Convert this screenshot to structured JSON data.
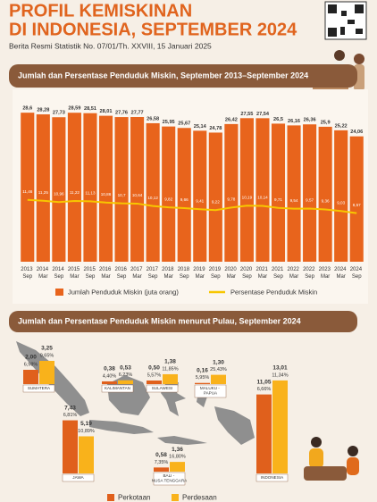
{
  "header": {
    "title_lines": [
      "PROFIL KEMISKINAN",
      "DI INDONESIA, SEPTEMBER 2024"
    ],
    "subtitle": "Berita Resmi Statistik No. 07/01/Th. XXVIII, 15 Januari 2025"
  },
  "chart_data": [
    {
      "type": "bar",
      "title": "Jumlah dan Persentase Penduduk Miskin, September 2013–September 2024",
      "categories": [
        "2013 Sep",
        "2014 Mar",
        "2014 Sep",
        "2015 Mar",
        "2015 Sep",
        "2016 Mar",
        "2016 Sep",
        "2017 Mar",
        "2017 Sep",
        "2018 Mar",
        "2018 Sep",
        "2019 Mar",
        "2019 Sep",
        "2020 Mar",
        "2020 Sep",
        "2021 Mar",
        "2021 Sep",
        "2022 Mar",
        "2022 Sep",
        "2023 Mar",
        "2024 Mar",
        "2024 Sep"
      ],
      "ylim": [
        0,
        30
      ],
      "y2lim": [
        -2,
        32
      ],
      "series": [
        {
          "name": "Jumlah Penduduk Miskin (juta orang)",
          "color": "#e8641c",
          "values": [
            28.6,
            28.28,
            27.73,
            28.59,
            28.51,
            28.01,
            27.76,
            27.77,
            26.58,
            25.95,
            25.67,
            25.14,
            24.78,
            26.42,
            27.55,
            27.54,
            26.5,
            26.16,
            26.36,
            25.9,
            25.22,
            24.06
          ],
          "value_labels": [
            "28,6",
            "28,28",
            "27,73",
            "28,59",
            "28,51",
            "28,01",
            "27,76",
            "27,77",
            "26,58",
            "25,95",
            "25,67",
            "25,14",
            "24,78",
            "26,42",
            "27,55",
            "27,54",
            "26,5",
            "26,16",
            "26,36",
            "25,9",
            "25,22",
            "24,06"
          ]
        },
        {
          "name": "Persentase Penduduk Miskin",
          "color": "#f7c600",
          "type": "line",
          "axis": "y2",
          "values": [
            11.46,
            11.25,
            10.96,
            11.22,
            11.13,
            10.86,
            10.7,
            10.64,
            10.12,
            9.82,
            9.66,
            9.41,
            9.22,
            9.78,
            10.19,
            10.14,
            9.71,
            9.54,
            9.57,
            9.36,
            9.03,
            8.57
          ],
          "value_labels": [
            "11,46",
            "11,25",
            "10,96",
            "11,22",
            "11,13",
            "10,86",
            "10,7",
            "10,64",
            "10,12",
            "9,82",
            "9,66",
            "9,41",
            "9,22",
            "9,78",
            "10,19",
            "10,14",
            "9,71",
            "9,54",
            "9,57",
            "9,36",
            "9,03",
            "8,57"
          ]
        }
      ]
    },
    {
      "type": "bar",
      "title": "Jumlah dan Persentase Penduduk Miskin menurut Pulau, September 2024",
      "categories": [
        "SUMATERA",
        "JAWA",
        "KALIMANTAN",
        "SULAWESI",
        "BALI - NUSA TENGGARA",
        "MALUKU - PAPUA",
        "INDONESIA"
      ],
      "ylim": [
        0,
        14
      ],
      "series": [
        {
          "name": "Perkotaan",
          "color": "#e0601c",
          "values": [
            2.0,
            7.43,
            0.38,
            0.5,
            0.58,
            0.16,
            11.05
          ],
          "value_labels": [
            "2,00",
            "7,43",
            "0,38",
            "0,50",
            "0,58",
            "0,16",
            "11,05"
          ],
          "percent_labels": [
            "6,98%",
            "6,81%",
            "4,40%",
            "5,57%",
            "7,35%",
            "5,95%",
            "6,66%"
          ]
        },
        {
          "name": "Perdesaan",
          "color": "#f9b21b",
          "values": [
            3.25,
            5.19,
            0.53,
            1.38,
            1.36,
            1.3,
            13.01
          ],
          "value_labels": [
            "3,25",
            "5,19",
            "0,53",
            "1,38",
            "1,36",
            "1,30",
            "13,01"
          ],
          "percent_labels": [
            "9,65%",
            "10,89%",
            "6,23%",
            "11,85%",
            "16,80%",
            "25,43%",
            "11,34%"
          ]
        }
      ]
    }
  ]
}
